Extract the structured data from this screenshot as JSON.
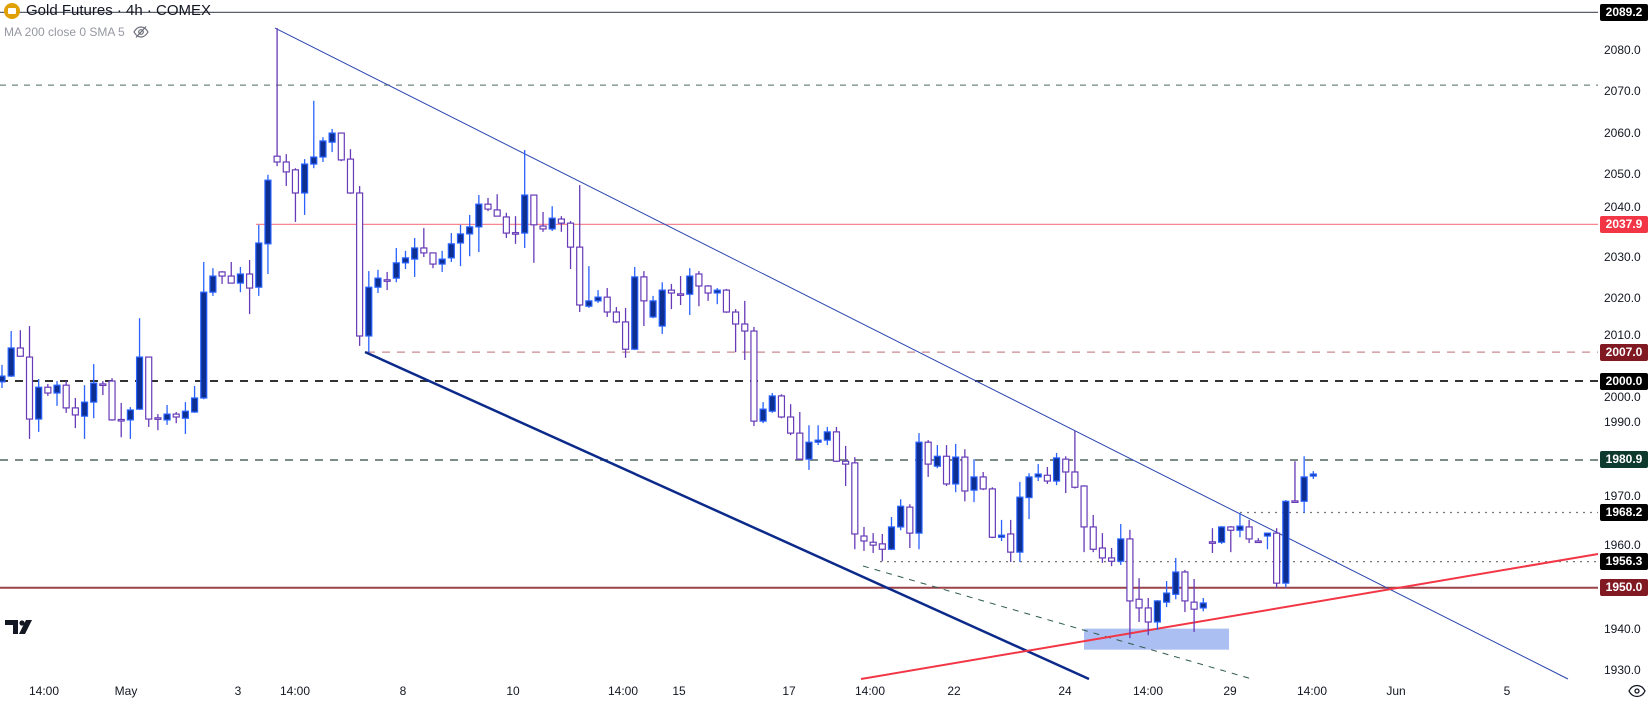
{
  "header": {
    "title": "Gold Futures · 4h · COMEX",
    "indicator": "MA 200 close 0 SMA 5",
    "logo_icon": "gold-coin-icon",
    "visibility_icon": "eye-slash-icon"
  },
  "price_axis": {
    "ticks": [
      "2080.0",
      "2070.0",
      "2060.0",
      "2050.0",
      "2040.0",
      "2030.0",
      "2020.0",
      "2010.0",
      "2000.0",
      "1990.0",
      "1970.0",
      "1960.0",
      "1940.0",
      "1930.0"
    ]
  },
  "levels": [
    {
      "label": "2089.2",
      "value": 2089.2,
      "style": "solid",
      "color": "#5d606b",
      "tag": "#000000"
    },
    {
      "label": "2037.9",
      "value": 2037.9,
      "style": "solid",
      "color": "#f7868f",
      "tag": "#f23645"
    },
    {
      "label": "2007.0",
      "value": 2007.0,
      "style": "dashed",
      "color": "#c98a8f",
      "tag": "#801922"
    },
    {
      "label": "2000.0",
      "value": 2000.0,
      "style": "dashed",
      "color": "#333333",
      "tag": "#000000"
    },
    {
      "label": "1980.9",
      "value": 1980.9,
      "style": "dashed",
      "color": "#7a8c85",
      "tag": "#0d3a2d"
    },
    {
      "label": "1968.2",
      "value": 1968.2,
      "style": "dotted",
      "color": "#777777",
      "tag": "#000000"
    },
    {
      "label": "1956.3",
      "value": 1956.3,
      "style": "dotted",
      "color": "#777777",
      "tag": "#000000"
    },
    {
      "label": "1950.0",
      "value": 1950.0,
      "style": "solid",
      "color": "#9b4249",
      "tag": "#801922"
    }
  ],
  "unlabeled_level": {
    "value": 2071.6,
    "style": "dashed",
    "color": "#4d6b60"
  },
  "zone": {
    "top": 1940.1,
    "bottom": 1935.0,
    "color": "#9db4f0"
  },
  "date_axis": {
    "labels": [
      "14:00",
      "May",
      "3",
      "14:00",
      "8",
      "10",
      "14:00",
      "15",
      "17",
      "14:00",
      "22",
      "24",
      "14:00",
      "29",
      "14:00",
      "Jun",
      "5"
    ]
  },
  "footer": {
    "logo": "TV",
    "settings_icon": "eye-icon"
  },
  "colors": {
    "up_fill": "#0d2f91",
    "up_stroke": "#2962ff",
    "down_stroke": "#673ab7",
    "channel": "#2a46b0",
    "support": "#f23645"
  },
  "chart_data": {
    "type": "candlestick",
    "ohlc": [
      [
        1999.8,
        2003.9,
        1998.3,
        2001.2
      ],
      [
        2001.2,
        2012.1,
        2001.0,
        2008.0
      ],
      [
        2008.0,
        2012.3,
        2006.0,
        2006.0
      ],
      [
        2005.8,
        2013.3,
        1986.0,
        1990.8
      ],
      [
        1990.8,
        2000.5,
        1987.7,
        1998.5
      ],
      [
        1998.5,
        1999.3,
        1996.4,
        1997.1
      ],
      [
        1997.1,
        2000.0,
        1994.0,
        1999.0
      ],
      [
        1999.0,
        2000.0,
        1992.3,
        1993.5
      ],
      [
        1993.5,
        1995.9,
        1988.6,
        1991.8
      ],
      [
        1991.5,
        1999.0,
        1986.0,
        1994.9
      ],
      [
        1994.9,
        2004.1,
        1991.0,
        1999.5
      ],
      [
        1999.3,
        2000.0,
        1996.6,
        1999.0
      ],
      [
        2000.0,
        2000.7,
        1990.4,
        1990.6
      ],
      [
        1990.7,
        1994.7,
        1986.4,
        1990.6
      ],
      [
        1990.6,
        1993.7,
        1986.0,
        1993.0
      ],
      [
        1993.2,
        2015.2,
        1993.0,
        2005.8
      ],
      [
        2005.8,
        2005.8,
        1988.9,
        1990.8
      ],
      [
        1991.1,
        1992.0,
        1988.1,
        1991.0
      ],
      [
        1990.6,
        1994.2,
        1989.4,
        1992.0
      ],
      [
        1992.0,
        1992.5,
        1989.8,
        1991.3
      ],
      [
        1991.0,
        1994.9,
        1987.2,
        1992.7
      ],
      [
        1992.5,
        1998.8,
        1992.3,
        1995.9
      ],
      [
        1995.9,
        2028.8,
        1995.6,
        2021.5
      ],
      [
        2021.5,
        2027.3,
        2020.6,
        2025.4
      ],
      [
        2026.4,
        2026.6,
        2023.5,
        2025.4
      ],
      [
        2025.4,
        2028.8,
        2023.7,
        2023.7
      ],
      [
        2023.7,
        2027.6,
        2021.5,
        2025.9
      ],
      [
        2025.9,
        2029.3,
        2016.2,
        2022.5
      ],
      [
        2022.7,
        2037.8,
        2020.6,
        2033.4
      ],
      [
        2033.2,
        2049.9,
        2025.9,
        2048.6
      ],
      [
        2054.4,
        2085.4,
        2052.0,
        2053.0
      ],
      [
        2053.0,
        2054.9,
        2047.2,
        2050.6
      ],
      [
        2051.1,
        2051.5,
        2038.5,
        2045.5
      ],
      [
        2045.5,
        2053.7,
        2040.2,
        2052.5
      ],
      [
        2052.5,
        2067.8,
        2051.5,
        2054.2
      ],
      [
        2054.2,
        2059.0,
        2053.0,
        2058.1
      ],
      [
        2057.8,
        2061.0,
        2055.4,
        2060.0
      ],
      [
        2060.0,
        2060.0,
        2053.2,
        2053.5
      ],
      [
        2053.7,
        2056.1,
        2045.3,
        2045.5
      ],
      [
        2045.5,
        2047.2,
        2008.5,
        2010.9
      ],
      [
        2010.9,
        2026.6,
        2007.0,
        2022.7
      ],
      [
        2022.7,
        2026.9,
        2021.3,
        2024.9
      ],
      [
        2024.5,
        2026.4,
        2022.0,
        2024.4
      ],
      [
        2024.9,
        2032.2,
        2023.9,
        2028.6
      ],
      [
        2028.6,
        2031.5,
        2027.1,
        2029.8
      ],
      [
        2029.5,
        2034.6,
        2025.2,
        2032.2
      ],
      [
        2032.2,
        2037.0,
        2030.0,
        2031.0
      ],
      [
        2031.0,
        2031.0,
        2027.3,
        2028.3
      ],
      [
        2028.3,
        2031.5,
        2026.4,
        2029.5
      ],
      [
        2029.8,
        2035.8,
        2028.8,
        2033.2
      ],
      [
        2033.4,
        2037.8,
        2027.8,
        2035.6
      ],
      [
        2035.6,
        2040.2,
        2030.2,
        2037.3
      ],
      [
        2037.3,
        2045.0,
        2031.2,
        2042.8
      ],
      [
        2042.8,
        2044.3,
        2041.1,
        2041.6
      ],
      [
        2041.4,
        2045.2,
        2039.9,
        2039.9
      ],
      [
        2039.7,
        2040.7,
        2034.6,
        2035.8
      ],
      [
        2035.9,
        2039.9,
        2033.2,
        2035.8
      ],
      [
        2035.8,
        2055.9,
        2032.2,
        2045.0
      ],
      [
        2045.0,
        2045.0,
        2028.6,
        2037.8
      ],
      [
        2037.5,
        2040.9,
        2036.1,
        2036.8
      ],
      [
        2036.8,
        2042.3,
        2036.3,
        2039.4
      ],
      [
        2039.2,
        2039.9,
        2036.1,
        2038.2
      ],
      [
        2038.2,
        2038.7,
        2027.1,
        2032.4
      ],
      [
        2032.4,
        2047.4,
        2016.7,
        2018.4
      ],
      [
        2018.1,
        2027.8,
        2017.7,
        2019.4
      ],
      [
        2019.4,
        2022.0,
        2018.9,
        2020.3
      ],
      [
        2020.3,
        2022.5,
        2015.5,
        2016.7
      ],
      [
        2016.7,
        2017.9,
        2014.0,
        2014.3
      ],
      [
        2014.3,
        2017.7,
        2005.6,
        2007.7
      ],
      [
        2007.7,
        2027.6,
        2007.5,
        2025.2
      ],
      [
        2025.2,
        2026.6,
        2013.3,
        2019.4
      ],
      [
        2015.5,
        2020.6,
        2015.2,
        2019.4
      ],
      [
        2013.3,
        2023.9,
        2011.4,
        2022.0
      ],
      [
        2022.0,
        2023.5,
        2017.4,
        2021.3
      ],
      [
        2021.1,
        2025.4,
        2018.4,
        2021.0
      ],
      [
        2021.0,
        2027.3,
        2016.0,
        2025.4
      ],
      [
        2025.9,
        2026.6,
        2018.1,
        2023.0
      ],
      [
        2023.0,
        2023.2,
        2019.4,
        2021.3
      ],
      [
        2021.3,
        2022.5,
        2018.6,
        2022.0
      ],
      [
        2022.0,
        2022.3,
        2016.5,
        2016.7
      ],
      [
        2016.7,
        2017.4,
        2007.0,
        2013.8
      ],
      [
        2013.8,
        2019.4,
        2005.1,
        2012.1
      ],
      [
        2012.1,
        2013.1,
        1989.1,
        1990.3
      ],
      [
        1990.3,
        1994.9,
        1989.8,
        1993.2
      ],
      [
        1992.7,
        1997.1,
        1992.3,
        1996.4
      ],
      [
        1996.4,
        1996.8,
        1991.0,
        1991.3
      ],
      [
        1991.3,
        1994.4,
        1986.9,
        1987.4
      ],
      [
        1987.4,
        1992.5,
        1980.9,
        1981.1
      ],
      [
        1981.1,
        1989.3,
        1978.5,
        1985.2
      ],
      [
        1985.2,
        1989.3,
        1984.5,
        1985.7
      ],
      [
        1985.7,
        1988.9,
        1984.5,
        1987.7
      ],
      [
        1987.7,
        1988.9,
        1980.4,
        1980.6
      ],
      [
        1980.6,
        1984.3,
        1974.6,
        1979.9
      ],
      [
        1980.2,
        1981.6,
        1959.3,
        1963.0
      ],
      [
        1962.5,
        1964.7,
        1958.9,
        1961.3
      ],
      [
        1961.0,
        1963.2,
        1958.4,
        1960.3
      ],
      [
        1960.6,
        1963.0,
        1956.4,
        1959.3
      ],
      [
        1959.3,
        1967.1,
        1959.1,
        1964.7
      ],
      [
        1964.7,
        1971.4,
        1963.9,
        1969.7
      ],
      [
        1969.5,
        1970.2,
        1959.6,
        1963.2
      ],
      [
        1963.2,
        1987.4,
        1959.3,
        1985.2
      ],
      [
        1985.2,
        1985.7,
        1976.8,
        1979.9
      ],
      [
        1979.4,
        1984.5,
        1978.9,
        1981.8
      ],
      [
        1981.8,
        1984.5,
        1974.6,
        1975.1
      ],
      [
        1975.1,
        1984.8,
        1973.1,
        1981.6
      ],
      [
        1981.6,
        1983.5,
        1970.9,
        1973.4
      ],
      [
        1973.6,
        1981.1,
        1970.7,
        1976.8
      ],
      [
        1976.8,
        1978.0,
        1973.6,
        1973.9
      ],
      [
        1973.9,
        1974.3,
        1962.0,
        1962.2
      ],
      [
        1962.2,
        1966.4,
        1961.3,
        1962.7
      ],
      [
        1963.0,
        1966.4,
        1956.2,
        1958.6
      ],
      [
        1958.6,
        1975.6,
        1956.2,
        1971.9
      ],
      [
        1971.8,
        1977.7,
        1966.6,
        1976.8
      ],
      [
        1976.8,
        1979.9,
        1975.8,
        1977.5
      ],
      [
        1977.2,
        1979.2,
        1975.1,
        1975.8
      ],
      [
        1975.8,
        1982.6,
        1974.8,
        1981.4
      ],
      [
        1981.1,
        1981.8,
        1972.9,
        1978.0
      ],
      [
        1978.0,
        1987.9,
        1974.0,
        1974.3
      ],
      [
        1974.6,
        1974.8,
        1958.6,
        1964.7
      ],
      [
        1964.7,
        1967.6,
        1958.6,
        1959.3
      ],
      [
        1959.6,
        1963.2,
        1956.0,
        1957.2
      ],
      [
        1957.2,
        1959.6,
        1955.2,
        1956.4
      ],
      [
        1956.4,
        1965.4,
        1955.5,
        1961.8
      ],
      [
        1961.8,
        1964.0,
        1937.8,
        1946.8
      ],
      [
        1947.2,
        1952.3,
        1941.7,
        1945.1
      ],
      [
        1945.1,
        1947.5,
        1938.5,
        1941.7
      ],
      [
        1941.7,
        1947.0,
        1939.8,
        1946.8
      ],
      [
        1946.5,
        1951.6,
        1945.3,
        1948.7
      ],
      [
        1948.4,
        1957.2,
        1947.2,
        1953.8
      ],
      [
        1953.8,
        1954.3,
        1944.1,
        1946.8
      ],
      [
        1946.5,
        1952.1,
        1939.3,
        1944.8
      ],
      [
        1945.1,
        1947.5,
        1944.3,
        1946.3
      ],
      [
        1961.1,
        1964.4,
        1958.4,
        1961.0
      ],
      [
        1961.0,
        1964.9,
        1960.6,
        1964.7
      ],
      [
        1964.7,
        1964.9,
        1958.6,
        1963.9
      ],
      [
        1963.9,
        1968.1,
        1962.2,
        1964.9
      ],
      [
        1964.7,
        1966.4,
        1960.8,
        1961.8
      ],
      [
        1961.3,
        1962.0,
        1961.0,
        1961.2
      ],
      [
        1962.5,
        1963.2,
        1959.3,
        1963.2
      ],
      [
        1963.2,
        1964.4,
        1949.9,
        1951.1
      ],
      [
        1951.1,
        1971.2,
        1950.1,
        1970.9
      ],
      [
        1971.0,
        1980.6,
        1970.7,
        1970.9
      ],
      [
        1970.9,
        1981.8,
        1968.1,
        1976.8
      ],
      [
        1977.0,
        1978.2,
        1976.3,
        1977.5
      ]
    ],
    "ylim": [
      1930,
      2089.2
    ]
  }
}
